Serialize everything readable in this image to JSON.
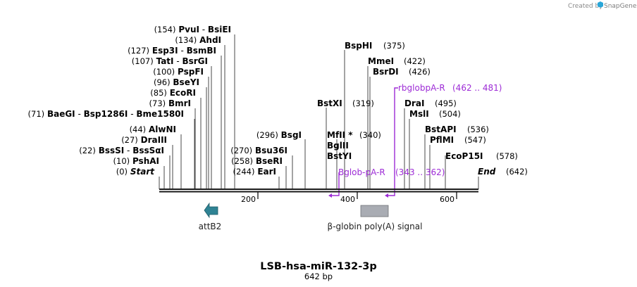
{
  "credit": {
    "created_by": "Created by",
    "brand": "SnapGene"
  },
  "map": {
    "name": "LSB-hsa-miR-132-3p",
    "length_label": "642 bp",
    "ticks": [
      "200",
      "400",
      "600"
    ],
    "features": [
      {
        "name": "attB2",
        "color": "#2f8394"
      },
      {
        "name": "β-globin poly(A) signal",
        "color": "#a9acb3"
      }
    ]
  },
  "left_sites": [
    {
      "pos": "(154)",
      "parts": [
        "PvuI",
        " - ",
        "BsiEI"
      ]
    },
    {
      "pos": "(134)",
      "parts": [
        "AhdI"
      ]
    },
    {
      "pos": "(127)",
      "parts": [
        "Esp3I",
        " - ",
        "BsmBI"
      ]
    },
    {
      "pos": "(107)",
      "parts": [
        "TatI",
        " - ",
        "BsrGI"
      ]
    },
    {
      "pos": "(100)",
      "parts": [
        "PspFI"
      ]
    },
    {
      "pos": "(96)",
      "parts": [
        "BseYI"
      ]
    },
    {
      "pos": "(85)",
      "parts": [
        "EcoRI"
      ]
    },
    {
      "pos": "(73)",
      "parts": [
        "BmrI"
      ]
    },
    {
      "pos": "(71)",
      "parts": [
        "BaeGI",
        " - ",
        "Bsp1286I",
        " - ",
        "Bme1580I"
      ]
    },
    {
      "pos": "(44)",
      "parts": [
        "AlwNI"
      ]
    },
    {
      "pos": "(27)",
      "parts": [
        "DraIII"
      ]
    },
    {
      "pos": "(22)",
      "parts": [
        "BssSI",
        " - ",
        "BssSαI"
      ]
    },
    {
      "pos": "(10)",
      "parts": [
        "PshAI"
      ]
    },
    {
      "pos": "(0)",
      "parts": [
        "Start"
      ]
    }
  ],
  "mid_sites": [
    {
      "pos": "(296)",
      "name": "BsgI"
    },
    {
      "pos": "(270)",
      "name": "Bsu36I"
    },
    {
      "pos": "(258)",
      "name": "BseRI"
    },
    {
      "pos": "(244)",
      "name": "EarI"
    }
  ],
  "right_sites": [
    {
      "name": "BspHI",
      "pos": "(375)"
    },
    {
      "name": "MmeI",
      "pos": "(422)"
    },
    {
      "name": "BsrDI",
      "pos": "(426)"
    },
    {
      "name": "BstXI",
      "pos": "(319)"
    },
    {
      "name": "DraI",
      "pos": "(495)"
    },
    {
      "name": "MslI",
      "pos": "(504)"
    },
    {
      "name": "MfII *",
      "pos": "(340)"
    },
    {
      "name": "BglII",
      "pos": ""
    },
    {
      "name": "BstYI",
      "pos": ""
    },
    {
      "name": "BstAPI",
      "pos": "(536)"
    },
    {
      "name": "PflMI",
      "pos": "(547)"
    },
    {
      "name": "EcoP15I",
      "pos": "(578)"
    },
    {
      "name": "End",
      "pos": "(642)"
    }
  ],
  "primers": [
    {
      "name": "rbglobpA-R",
      "range": "(462 .. 481)"
    },
    {
      "name": "Bglob-pA-R",
      "range": "(343 .. 362)"
    }
  ],
  "colors": {
    "primer": "#9d2bd6",
    "backbone": "#1a1a1a"
  }
}
